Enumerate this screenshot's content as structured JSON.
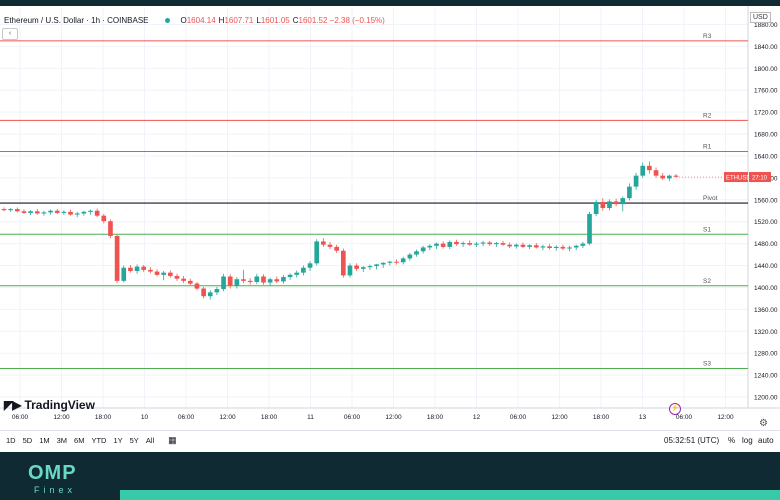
{
  "header": {
    "symbol": "Ethereum / U.S. Dollar · 1h · COINBASE",
    "open_k": "O",
    "open": "1604.14",
    "high_k": "H",
    "high": "1607.71",
    "low_k": "L",
    "low": "1601.05",
    "close_k": "C",
    "close": "1601.52 −2.38 (−0.15%)"
  },
  "currency": "USD",
  "logo": "TradingView",
  "collapse_icon": "chevron-collapse-icon",
  "timeframes": [
    "1D",
    "5D",
    "1M",
    "3M",
    "6M",
    "YTD",
    "1Y",
    "5Y",
    "All"
  ],
  "clock": "05:32:51 (UTC)",
  "toggles": {
    "percent": "%",
    "log": "log",
    "auto": "auto"
  },
  "brand": {
    "name": "OMP",
    "sub": "Finex"
  },
  "colors": {
    "up": "#26a69a",
    "down": "#ef5350",
    "resistance": "#ef5350",
    "support": "#4caf50",
    "pivot": "#131722"
  },
  "chart_data": {
    "type": "candlestick",
    "ylim": [
      1180,
      1910
    ],
    "y_ticks": [
      1200,
      1240,
      1280,
      1320,
      1360,
      1400,
      1440,
      1480,
      1520,
      1560,
      1600,
      1640,
      1680,
      1720,
      1760,
      1800,
      1840,
      1880
    ],
    "x_ticks": [
      "06:00",
      "12:00",
      "18:00",
      "10",
      "06:00",
      "12:00",
      "18:00",
      "11",
      "06:00",
      "12:00",
      "18:00",
      "12",
      "06:00",
      "12:00",
      "18:00",
      "13",
      "06:00",
      "12:00"
    ],
    "levels": [
      {
        "label": "R3",
        "value": 1850,
        "kind": "resistance"
      },
      {
        "label": "R2",
        "value": 1705,
        "kind": "resistance"
      },
      {
        "label": "R1",
        "value": 1648,
        "kind": "resistance"
      },
      {
        "label": "Pivot",
        "value": 1554,
        "kind": "pivot"
      },
      {
        "label": "S1",
        "value": 1497,
        "kind": "support"
      },
      {
        "label": "S2",
        "value": 1403,
        "kind": "support"
      },
      {
        "label": "S3",
        "value": 1252,
        "kind": "support"
      }
    ],
    "last_price": {
      "label": "ETHUSD",
      "value": 1601.52,
      "countdown": "27:10"
    },
    "candles": [
      {
        "o": 1543,
        "h": 1546,
        "l": 1539,
        "c": 1541
      },
      {
        "o": 1541,
        "h": 1545,
        "l": 1538,
        "c": 1543
      },
      {
        "o": 1543,
        "h": 1546,
        "l": 1537,
        "c": 1539
      },
      {
        "o": 1539,
        "h": 1543,
        "l": 1534,
        "c": 1536
      },
      {
        "o": 1536,
        "h": 1541,
        "l": 1532,
        "c": 1539
      },
      {
        "o": 1539,
        "h": 1543,
        "l": 1533,
        "c": 1535
      },
      {
        "o": 1535,
        "h": 1540,
        "l": 1531,
        "c": 1537
      },
      {
        "o": 1537,
        "h": 1542,
        "l": 1533,
        "c": 1540
      },
      {
        "o": 1540,
        "h": 1543,
        "l": 1534,
        "c": 1536
      },
      {
        "o": 1536,
        "h": 1541,
        "l": 1532,
        "c": 1538
      },
      {
        "o": 1538,
        "h": 1542,
        "l": 1531,
        "c": 1533
      },
      {
        "o": 1533,
        "h": 1538,
        "l": 1528,
        "c": 1535
      },
      {
        "o": 1535,
        "h": 1540,
        "l": 1531,
        "c": 1538
      },
      {
        "o": 1538,
        "h": 1542,
        "l": 1533,
        "c": 1540
      },
      {
        "o": 1540,
        "h": 1544,
        "l": 1528,
        "c": 1531
      },
      {
        "o": 1531,
        "h": 1534,
        "l": 1517,
        "c": 1521
      },
      {
        "o": 1521,
        "h": 1524,
        "l": 1490,
        "c": 1494
      },
      {
        "o": 1494,
        "h": 1496,
        "l": 1408,
        "c": 1412
      },
      {
        "o": 1412,
        "h": 1440,
        "l": 1409,
        "c": 1436
      },
      {
        "o": 1436,
        "h": 1441,
        "l": 1427,
        "c": 1430
      },
      {
        "o": 1430,
        "h": 1442,
        "l": 1425,
        "c": 1438
      },
      {
        "o": 1438,
        "h": 1441,
        "l": 1428,
        "c": 1432
      },
      {
        "o": 1432,
        "h": 1437,
        "l": 1426,
        "c": 1429
      },
      {
        "o": 1429,
        "h": 1433,
        "l": 1420,
        "c": 1423
      },
      {
        "o": 1423,
        "h": 1430,
        "l": 1413,
        "c": 1427
      },
      {
        "o": 1427,
        "h": 1431,
        "l": 1418,
        "c": 1421
      },
      {
        "o": 1421,
        "h": 1425,
        "l": 1412,
        "c": 1416
      },
      {
        "o": 1416,
        "h": 1421,
        "l": 1408,
        "c": 1412
      },
      {
        "o": 1412,
        "h": 1416,
        "l": 1404,
        "c": 1407
      },
      {
        "o": 1407,
        "h": 1410,
        "l": 1395,
        "c": 1398
      },
      {
        "o": 1398,
        "h": 1401,
        "l": 1380,
        "c": 1384
      },
      {
        "o": 1384,
        "h": 1395,
        "l": 1378,
        "c": 1391
      },
      {
        "o": 1391,
        "h": 1401,
        "l": 1386,
        "c": 1397
      },
      {
        "o": 1397,
        "h": 1425,
        "l": 1393,
        "c": 1420
      },
      {
        "o": 1420,
        "h": 1424,
        "l": 1398,
        "c": 1403
      },
      {
        "o": 1403,
        "h": 1419,
        "l": 1398,
        "c": 1415
      },
      {
        "o": 1415,
        "h": 1432,
        "l": 1408,
        "c": 1412
      },
      {
        "o": 1412,
        "h": 1417,
        "l": 1405,
        "c": 1410
      },
      {
        "o": 1410,
        "h": 1425,
        "l": 1406,
        "c": 1420
      },
      {
        "o": 1420,
        "h": 1424,
        "l": 1405,
        "c": 1409
      },
      {
        "o": 1409,
        "h": 1418,
        "l": 1404,
        "c": 1415
      },
      {
        "o": 1415,
        "h": 1420,
        "l": 1408,
        "c": 1411
      },
      {
        "o": 1411,
        "h": 1423,
        "l": 1407,
        "c": 1419
      },
      {
        "o": 1419,
        "h": 1426,
        "l": 1414,
        "c": 1423
      },
      {
        "o": 1423,
        "h": 1431,
        "l": 1418,
        "c": 1427
      },
      {
        "o": 1427,
        "h": 1440,
        "l": 1422,
        "c": 1436
      },
      {
        "o": 1436,
        "h": 1448,
        "l": 1430,
        "c": 1444
      },
      {
        "o": 1444,
        "h": 1488,
        "l": 1440,
        "c": 1484
      },
      {
        "o": 1484,
        "h": 1490,
        "l": 1474,
        "c": 1478
      },
      {
        "o": 1478,
        "h": 1483,
        "l": 1470,
        "c": 1474
      },
      {
        "o": 1474,
        "h": 1478,
        "l": 1463,
        "c": 1467
      },
      {
        "o": 1467,
        "h": 1471,
        "l": 1418,
        "c": 1422
      },
      {
        "o": 1422,
        "h": 1444,
        "l": 1418,
        "c": 1440
      },
      {
        "o": 1440,
        "h": 1444,
        "l": 1430,
        "c": 1434
      },
      {
        "o": 1434,
        "h": 1439,
        "l": 1428,
        "c": 1437
      },
      {
        "o": 1437,
        "h": 1442,
        "l": 1432,
        "c": 1439
      },
      {
        "o": 1439,
        "h": 1443,
        "l": 1433,
        "c": 1442
      },
      {
        "o": 1442,
        "h": 1446,
        "l": 1436,
        "c": 1445
      },
      {
        "o": 1445,
        "h": 1449,
        "l": 1440,
        "c": 1447
      },
      {
        "o": 1447,
        "h": 1451,
        "l": 1442,
        "c": 1446
      },
      {
        "o": 1446,
        "h": 1456,
        "l": 1442,
        "c": 1453
      },
      {
        "o": 1453,
        "h": 1463,
        "l": 1449,
        "c": 1460
      },
      {
        "o": 1460,
        "h": 1469,
        "l": 1456,
        "c": 1466
      },
      {
        "o": 1466,
        "h": 1476,
        "l": 1462,
        "c": 1473
      },
      {
        "o": 1473,
        "h": 1479,
        "l": 1468,
        "c": 1476
      },
      {
        "o": 1476,
        "h": 1482,
        "l": 1470,
        "c": 1480
      },
      {
        "o": 1480,
        "h": 1484,
        "l": 1471,
        "c": 1474
      },
      {
        "o": 1474,
        "h": 1486,
        "l": 1470,
        "c": 1483
      },
      {
        "o": 1483,
        "h": 1487,
        "l": 1476,
        "c": 1479
      },
      {
        "o": 1479,
        "h": 1484,
        "l": 1474,
        "c": 1481
      },
      {
        "o": 1481,
        "h": 1486,
        "l": 1476,
        "c": 1478
      },
      {
        "o": 1478,
        "h": 1483,
        "l": 1474,
        "c": 1480
      },
      {
        "o": 1480,
        "h": 1485,
        "l": 1475,
        "c": 1482
      },
      {
        "o": 1482,
        "h": 1485,
        "l": 1476,
        "c": 1479
      },
      {
        "o": 1479,
        "h": 1483,
        "l": 1474,
        "c": 1481
      },
      {
        "o": 1481,
        "h": 1485,
        "l": 1476,
        "c": 1478
      },
      {
        "o": 1478,
        "h": 1482,
        "l": 1472,
        "c": 1475
      },
      {
        "o": 1475,
        "h": 1480,
        "l": 1471,
        "c": 1478
      },
      {
        "o": 1478,
        "h": 1482,
        "l": 1472,
        "c": 1474
      },
      {
        "o": 1474,
        "h": 1479,
        "l": 1470,
        "c": 1477
      },
      {
        "o": 1477,
        "h": 1481,
        "l": 1471,
        "c": 1473
      },
      {
        "o": 1473,
        "h": 1478,
        "l": 1468,
        "c": 1475
      },
      {
        "o": 1475,
        "h": 1479,
        "l": 1469,
        "c": 1472
      },
      {
        "o": 1472,
        "h": 1477,
        "l": 1467,
        "c": 1474
      },
      {
        "o": 1474,
        "h": 1478,
        "l": 1468,
        "c": 1471
      },
      {
        "o": 1471,
        "h": 1476,
        "l": 1466,
        "c": 1473
      },
      {
        "o": 1473,
        "h": 1478,
        "l": 1468,
        "c": 1476
      },
      {
        "o": 1476,
        "h": 1483,
        "l": 1472,
        "c": 1480
      },
      {
        "o": 1480,
        "h": 1538,
        "l": 1477,
        "c": 1534
      },
      {
        "o": 1534,
        "h": 1560,
        "l": 1530,
        "c": 1556
      },
      {
        "o": 1556,
        "h": 1563,
        "l": 1540,
        "c": 1545
      },
      {
        "o": 1545,
        "h": 1561,
        "l": 1541,
        "c": 1557
      },
      {
        "o": 1557,
        "h": 1562,
        "l": 1548,
        "c": 1552
      },
      {
        "o": 1552,
        "h": 1566,
        "l": 1539,
        "c": 1563
      },
      {
        "o": 1563,
        "h": 1590,
        "l": 1559,
        "c": 1584
      },
      {
        "o": 1584,
        "h": 1609,
        "l": 1578,
        "c": 1604
      },
      {
        "o": 1604,
        "h": 1628,
        "l": 1600,
        "c": 1622
      },
      {
        "o": 1622,
        "h": 1630,
        "l": 1608,
        "c": 1614
      },
      {
        "o": 1614,
        "h": 1619,
        "l": 1600,
        "c": 1604
      },
      {
        "o": 1604,
        "h": 1609,
        "l": 1596,
        "c": 1599
      },
      {
        "o": 1599,
        "h": 1606,
        "l": 1594,
        "c": 1604
      },
      {
        "o": 1604,
        "h": 1607,
        "l": 1601,
        "c": 1602
      }
    ]
  }
}
